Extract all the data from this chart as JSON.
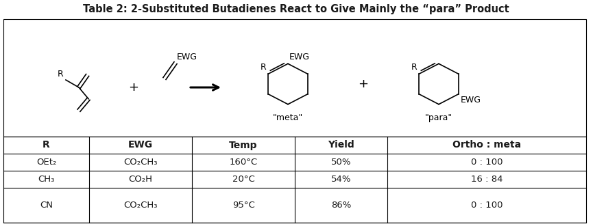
{
  "title": "Table 2: 2-Substituted Butadienes React to Give Mainly the “para” Product",
  "col_headers": [
    "R",
    "EWG",
    "Temp",
    "Yield",
    "Ortho : meta"
  ],
  "rows": [
    [
      "OEt₂",
      "CO₂CH₃",
      "160°C",
      "50%",
      "0 : 100"
    ],
    [
      "CH₃",
      "CO₂H",
      "20°C",
      "54%",
      "16 : 84"
    ],
    [
      "CN",
      "CO₂CH₃",
      "95°C",
      "86%",
      "0 : 100"
    ]
  ],
  "bg_color": "#ffffff",
  "text_color": "#1a1a1a",
  "title_fontsize": 10.5,
  "header_fontsize": 10,
  "cell_fontsize": 9.5
}
